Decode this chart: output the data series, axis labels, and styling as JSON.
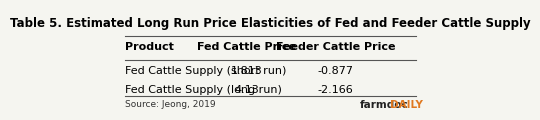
{
  "title": "Table 5. Estimated Long Run Price Elasticities of Fed and Feeder Cattle Supply",
  "columns": [
    "Product",
    "Fed Cattle Price",
    "Feeder Cattle Price"
  ],
  "rows": [
    [
      "Fed Cattle Supply (short run)",
      "1.813",
      "-0.877"
    ],
    [
      "Fed Cattle Supply (long run)",
      "4.13",
      "-2.166"
    ]
  ],
  "source": "Source: Jeong, 2019",
  "logo_text1": "farmdoc",
  "logo_text2": "DAILY",
  "bg_color": "#f5f5f0",
  "border_color": "#cccccc",
  "header_line_color": "#555555",
  "title_fontsize": 8.5,
  "header_fontsize": 8.0,
  "body_fontsize": 8.0,
  "source_fontsize": 6.5,
  "logo_color": "#e07820"
}
